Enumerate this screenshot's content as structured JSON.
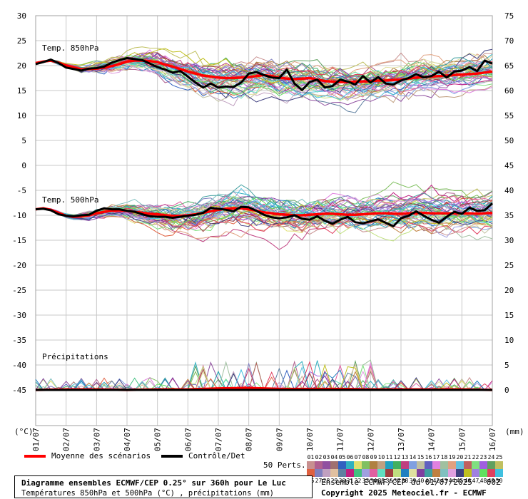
{
  "chart_data": {
    "type": "line",
    "title": "Diagramme ensembles ECMWF/CEP 0.25° sur 360h pour Le Luc",
    "subtitle": "Températures 850hPa et 500hPa (°C) , précipitations (mm)",
    "left_axis_unit": "(°C)",
    "right_axis_unit": "(mm)",
    "left_ticks": [
      "30",
      "25",
      "20",
      "15",
      "10",
      "5",
      "0",
      "-5",
      "-10",
      "-15",
      "-20",
      "-25",
      "-30",
      "-35",
      "-40",
      "-45"
    ],
    "right_ticks": [
      "75",
      "70",
      "65",
      "60",
      "55",
      "50",
      "45",
      "40",
      "35",
      "30",
      "25",
      "20",
      "15",
      "10",
      "5",
      "0"
    ],
    "x_tick_labels": [
      "01/07",
      "02/07",
      "03/07",
      "04/07",
      "05/07",
      "06/07",
      "07/07",
      "08/07",
      "09/07",
      "10/07",
      "11/07",
      "12/07",
      "13/07",
      "14/07",
      "15/07",
      "16/07"
    ],
    "grid": true,
    "panel_labels": [
      "Temp. 850hPa",
      "Temp. 500hPa",
      "Précipitations"
    ],
    "ylim_left": [
      -45,
      30
    ],
    "series": [
      {
        "name": "Moyenne des scénarios",
        "panel": "850",
        "color": "#ff0000",
        "x": [
          0,
          0.25,
          0.5,
          0.75,
          1,
          1.25,
          1.5,
          1.75,
          2,
          2.25,
          2.5,
          2.75,
          3,
          3.25,
          3.5,
          3.75,
          4,
          4.25,
          4.5,
          4.75,
          5,
          5.25,
          5.5,
          5.75,
          6,
          6.25,
          6.5,
          6.75,
          7,
          7.25,
          7.5,
          7.75,
          8,
          8.25,
          8.5,
          8.75,
          9,
          9.25,
          9.5,
          9.75,
          10,
          10.25,
          10.5,
          10.75,
          11,
          11.25,
          11.5,
          11.75,
          12,
          12.25,
          12.5,
          12.75,
          13,
          13.25,
          13.5,
          13.75,
          14,
          14.25,
          14.5,
          14.75,
          15
        ],
        "values": [
          20.5,
          20.8,
          21,
          20.6,
          20,
          19.6,
          19.2,
          19.3,
          19.4,
          19.6,
          19.9,
          20.3,
          20.8,
          21,
          21,
          20.9,
          20.7,
          20.2,
          19.8,
          19.3,
          18.8,
          18.4,
          18,
          17.8,
          17.6,
          17.5,
          17.5,
          17.6,
          17.7,
          17.9,
          18.1,
          17.9,
          17.6,
          17.4,
          17.3,
          17.4,
          17.5,
          17.2,
          16.9,
          16.8,
          16.7,
          16.7,
          16.8,
          16.8,
          16.9,
          17,
          17,
          17.1,
          17.2,
          17.4,
          17.6,
          17.7,
          17.8,
          17.9,
          18,
          18.1,
          18.2,
          18.3,
          18.4,
          18.6,
          18.8
        ]
      },
      {
        "name": "Contrôle/Det",
        "panel": "850",
        "color": "#000000",
        "x": [
          0,
          0.25,
          0.5,
          0.75,
          1,
          1.25,
          1.5,
          1.75,
          2,
          2.25,
          2.5,
          2.75,
          3,
          3.25,
          3.5,
          3.75,
          4,
          4.25,
          4.5,
          4.75,
          5,
          5.25,
          5.5,
          5.75,
          6,
          6.25,
          6.5,
          6.75,
          7,
          7.25,
          7.5,
          7.75,
          8,
          8.25,
          8.5,
          8.75,
          9,
          9.25,
          9.5,
          9.75,
          10,
          10.25,
          10.5,
          10.75,
          11,
          11.25,
          11.5,
          11.75,
          12,
          12.25,
          12.5,
          12.75,
          13,
          13.25,
          13.5,
          13.75,
          14,
          14.25,
          14.5,
          14.75,
          15
        ],
        "values": [
          20.3,
          20.7,
          21.2,
          20.5,
          19.6,
          19.3,
          19,
          19.4,
          19.5,
          19.8,
          20.6,
          21.1,
          21.5,
          21.3,
          21.1,
          20.4,
          19.7,
          19.2,
          18.6,
          18.9,
          17.8,
          16.6,
          15.6,
          16.4,
          15.6,
          15.8,
          15.7,
          16.6,
          18.4,
          18.7,
          18.1,
          17.6,
          17.5,
          19.2,
          16.4,
          15.1,
          16.7,
          17.2,
          15.6,
          15.9,
          17.2,
          16.8,
          16.2,
          17.9,
          16.6,
          17.7,
          16.4,
          16.2,
          17,
          17.5,
          18.3,
          17.6,
          17.9,
          18.8,
          17.6,
          18.8,
          19,
          19.7,
          18.9,
          21,
          20.4
        ]
      },
      {
        "name": "Moyenne des scénarios",
        "panel": "500",
        "color": "#ff0000",
        "x": [
          0,
          0.25,
          0.5,
          0.75,
          1,
          1.25,
          1.5,
          1.75,
          2,
          2.25,
          2.5,
          2.75,
          3,
          3.25,
          3.5,
          3.75,
          4,
          4.25,
          4.5,
          4.75,
          5,
          5.25,
          5.5,
          5.75,
          6,
          6.25,
          6.5,
          6.75,
          7,
          7.25,
          7.5,
          7.75,
          8,
          8.25,
          8.5,
          8.75,
          9,
          9.25,
          9.5,
          9.75,
          10,
          10.25,
          10.5,
          10.75,
          11,
          11.25,
          11.5,
          11.75,
          12,
          12.25,
          12.5,
          12.75,
          13,
          13.25,
          13.5,
          13.75,
          14,
          14.25,
          14.5,
          14.75,
          15
        ],
        "values": [
          -8.8,
          -8.6,
          -8.9,
          -9.5,
          -10.1,
          -10.3,
          -10.2,
          -10,
          -9.6,
          -9.3,
          -9.1,
          -9,
          -9.1,
          -9.3,
          -9.5,
          -9.7,
          -9.8,
          -10,
          -10.1,
          -10.1,
          -10,
          -9.8,
          -9.5,
          -9.2,
          -8.9,
          -8.7,
          -8.6,
          -8.6,
          -8.8,
          -9.1,
          -9.4,
          -9.6,
          -9.8,
          -9.9,
          -10,
          -10,
          -9.9,
          -9.8,
          -9.7,
          -9.7,
          -9.8,
          -9.9,
          -9.9,
          -9.8,
          -9.7,
          -9.6,
          -9.6,
          -9.7,
          -9.7,
          -9.6,
          -9.6,
          -9.5,
          -9.6,
          -9.6,
          -9.6,
          -9.6,
          -9.6,
          -9.6,
          -9.7,
          -9.6,
          -9.5
        ]
      },
      {
        "name": "Contrôle/Det",
        "panel": "500",
        "color": "#000000",
        "x": [
          0,
          0.25,
          0.5,
          0.75,
          1,
          1.25,
          1.5,
          1.75,
          2,
          2.25,
          2.5,
          2.75,
          3,
          3.25,
          3.5,
          3.75,
          4,
          4.25,
          4.5,
          4.75,
          5,
          5.25,
          5.5,
          5.75,
          6,
          6.25,
          6.5,
          6.75,
          7,
          7.25,
          7.5,
          7.75,
          8,
          8.25,
          8.5,
          8.75,
          9,
          9.25,
          9.5,
          9.75,
          10,
          10.25,
          10.5,
          10.75,
          11,
          11.25,
          11.5,
          11.75,
          12,
          12.25,
          12.5,
          12.75,
          13,
          13.25,
          13.5,
          13.75,
          14,
          14.25,
          14.5,
          14.75,
          15
        ],
        "values": [
          -8.8,
          -8.7,
          -9,
          -9.8,
          -10.1,
          -10.2,
          -10,
          -9.9,
          -9.1,
          -8.6,
          -8.8,
          -8.8,
          -9.1,
          -9.3,
          -9.8,
          -10.2,
          -10.3,
          -10.3,
          -10.5,
          -10.3,
          -10.1,
          -9.9,
          -9.5,
          -8.5,
          -8.7,
          -8.9,
          -9.2,
          -8.3,
          -8.4,
          -9.1,
          -9.9,
          -10.4,
          -10.6,
          -10.4,
          -10,
          -10.7,
          -10.9,
          -10.2,
          -11.1,
          -11.7,
          -10.9,
          -10.3,
          -11.4,
          -11.6,
          -11.2,
          -10.8,
          -11.5,
          -12.2,
          -10.6,
          -10.1,
          -9.2,
          -10.1,
          -10.9,
          -11.5,
          -10.3,
          -9.3,
          -9.7,
          -8.5,
          -9.1,
          -9,
          -7.6
        ]
      },
      {
        "name": "Moyenne des scénarios",
        "panel": "precip",
        "color": "#ff0000",
        "x": [
          0,
          1,
          2,
          3,
          4,
          5,
          6,
          7,
          8,
          9,
          10,
          11,
          12,
          13,
          14,
          15
        ],
        "values": [
          0,
          0.1,
          0.1,
          0,
          0.1,
          0.1,
          0.3,
          0.4,
          0.2,
          0.2,
          0.2,
          0.1,
          0.1,
          0.1,
          0.1,
          0
        ]
      },
      {
        "name": "Contrôle/Det",
        "panel": "precip",
        "color": "#000000",
        "x": [
          0,
          1,
          2,
          3,
          4,
          5,
          6,
          7,
          8,
          9,
          10,
          11,
          12,
          13,
          14,
          15
        ],
        "values": [
          0,
          0,
          0,
          0,
          0,
          0,
          0,
          0,
          0,
          0,
          0,
          0,
          0,
          0,
          0,
          0
        ]
      }
    ]
  },
  "legend": {
    "mean_label": "Moyenne des scénarios",
    "control_label": "Contrôle/Det",
    "perts_label": "50 Perts.",
    "mean_color": "#ff0000",
    "control_color": "#000000",
    "members_top": [
      "01",
      "02",
      "03",
      "04",
      "05",
      "06",
      "07",
      "08",
      "09",
      "10",
      "11",
      "12",
      "13",
      "14",
      "15",
      "16",
      "17",
      "18",
      "19",
      "20",
      "21",
      "22",
      "23",
      "24",
      "25"
    ],
    "members_bottom": [
      "26",
      "27",
      "28",
      "29",
      "30",
      "31",
      "32",
      "33",
      "34",
      "35",
      "36",
      "37",
      "38",
      "39",
      "40",
      "41",
      "42",
      "43",
      "44",
      "45",
      "46",
      "47",
      "48",
      "49",
      "50"
    ],
    "member_colors_top": [
      "#c89090",
      "#b06090",
      "#9050a0",
      "#a07070",
      "#3060c0",
      "#30b0c0",
      "#e0e070",
      "#80c060",
      "#b08040",
      "#c0a080",
      "#20a0c0",
      "#40b060",
      "#c04080",
      "#80a0e0",
      "#c0c0a0",
      "#6060c0",
      "#e080e0",
      "#a0c0a0",
      "#e0a080",
      "#60c0e0",
      "#c06060",
      "#80e080",
      "#a060e0",
      "#60a060",
      "#c0c060"
    ],
    "member_colors_bottom": [
      "#e06040",
      "#8080c0",
      "#c0a0c0",
      "#e0c0a0",
      "#6080a0",
      "#c02080",
      "#40c080",
      "#a0a0e0",
      "#e060a0",
      "#60e0c0",
      "#a04040",
      "#c0e080",
      "#2080c0",
      "#e0e0a0",
      "#8040a0",
      "#40a0a0",
      "#c08040",
      "#80c0c0",
      "#e0a0e0",
      "#404080",
      "#c0c020",
      "#a080e0",
      "#60e060",
      "#e04060",
      "#40c0e0"
    ]
  },
  "footer": {
    "title": "Diagramme ensembles ECMWF/CEP 0.25° sur 360h pour Le Luc",
    "subtitle": "Températures 850hPa et 500hPa (°C) , précipitations (mm)",
    "run": "Ensemble ECMWF/CEP du 01/07/2025 - 00Z",
    "copyright": "Copyright 2025 Meteociel.fr - ECMWF"
  }
}
